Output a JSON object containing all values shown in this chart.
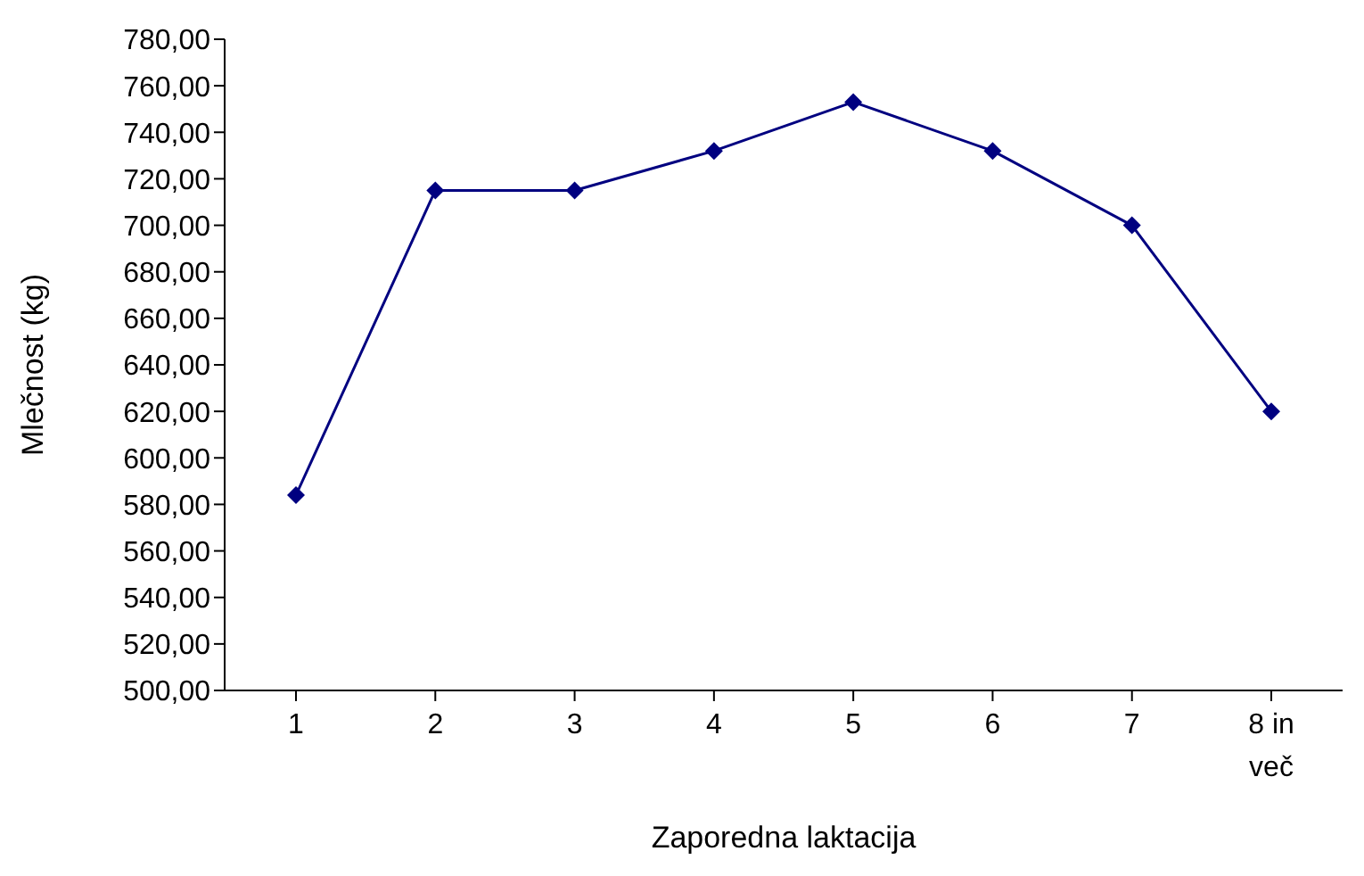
{
  "chart_data": {
    "type": "line",
    "xlabel": "Zaporedna laktacija",
    "ylabel": "Mlečnost (kg)",
    "categories": [
      "1",
      "2",
      "3",
      "4",
      "5",
      "6",
      "7",
      "8 in več"
    ],
    "series": [
      {
        "color": "#000080",
        "values": [
          584,
          715,
          715,
          732,
          753,
          732,
          700,
          620
        ]
      }
    ],
    "ylim": [
      500,
      780
    ],
    "yticks": [
      {
        "value": 500,
        "label": "500,00"
      },
      {
        "value": 520,
        "label": "520,00"
      },
      {
        "value": 540,
        "label": "540,00"
      },
      {
        "value": 560,
        "label": "560,00"
      },
      {
        "value": 580,
        "label": "580,00"
      },
      {
        "value": 600,
        "label": "600,00"
      },
      {
        "value": 620,
        "label": "620,00"
      },
      {
        "value": 640,
        "label": "640,00"
      },
      {
        "value": 660,
        "label": "660,00"
      },
      {
        "value": 680,
        "label": "680,00"
      },
      {
        "value": 700,
        "label": "700,00"
      },
      {
        "value": 720,
        "label": "720,00"
      },
      {
        "value": 740,
        "label": "740,00"
      },
      {
        "value": 760,
        "label": "760,00"
      },
      {
        "value": 780,
        "label": "780,00"
      }
    ],
    "grid": false,
    "legend": false,
    "marker": "diamond",
    "line_style": "solid"
  }
}
